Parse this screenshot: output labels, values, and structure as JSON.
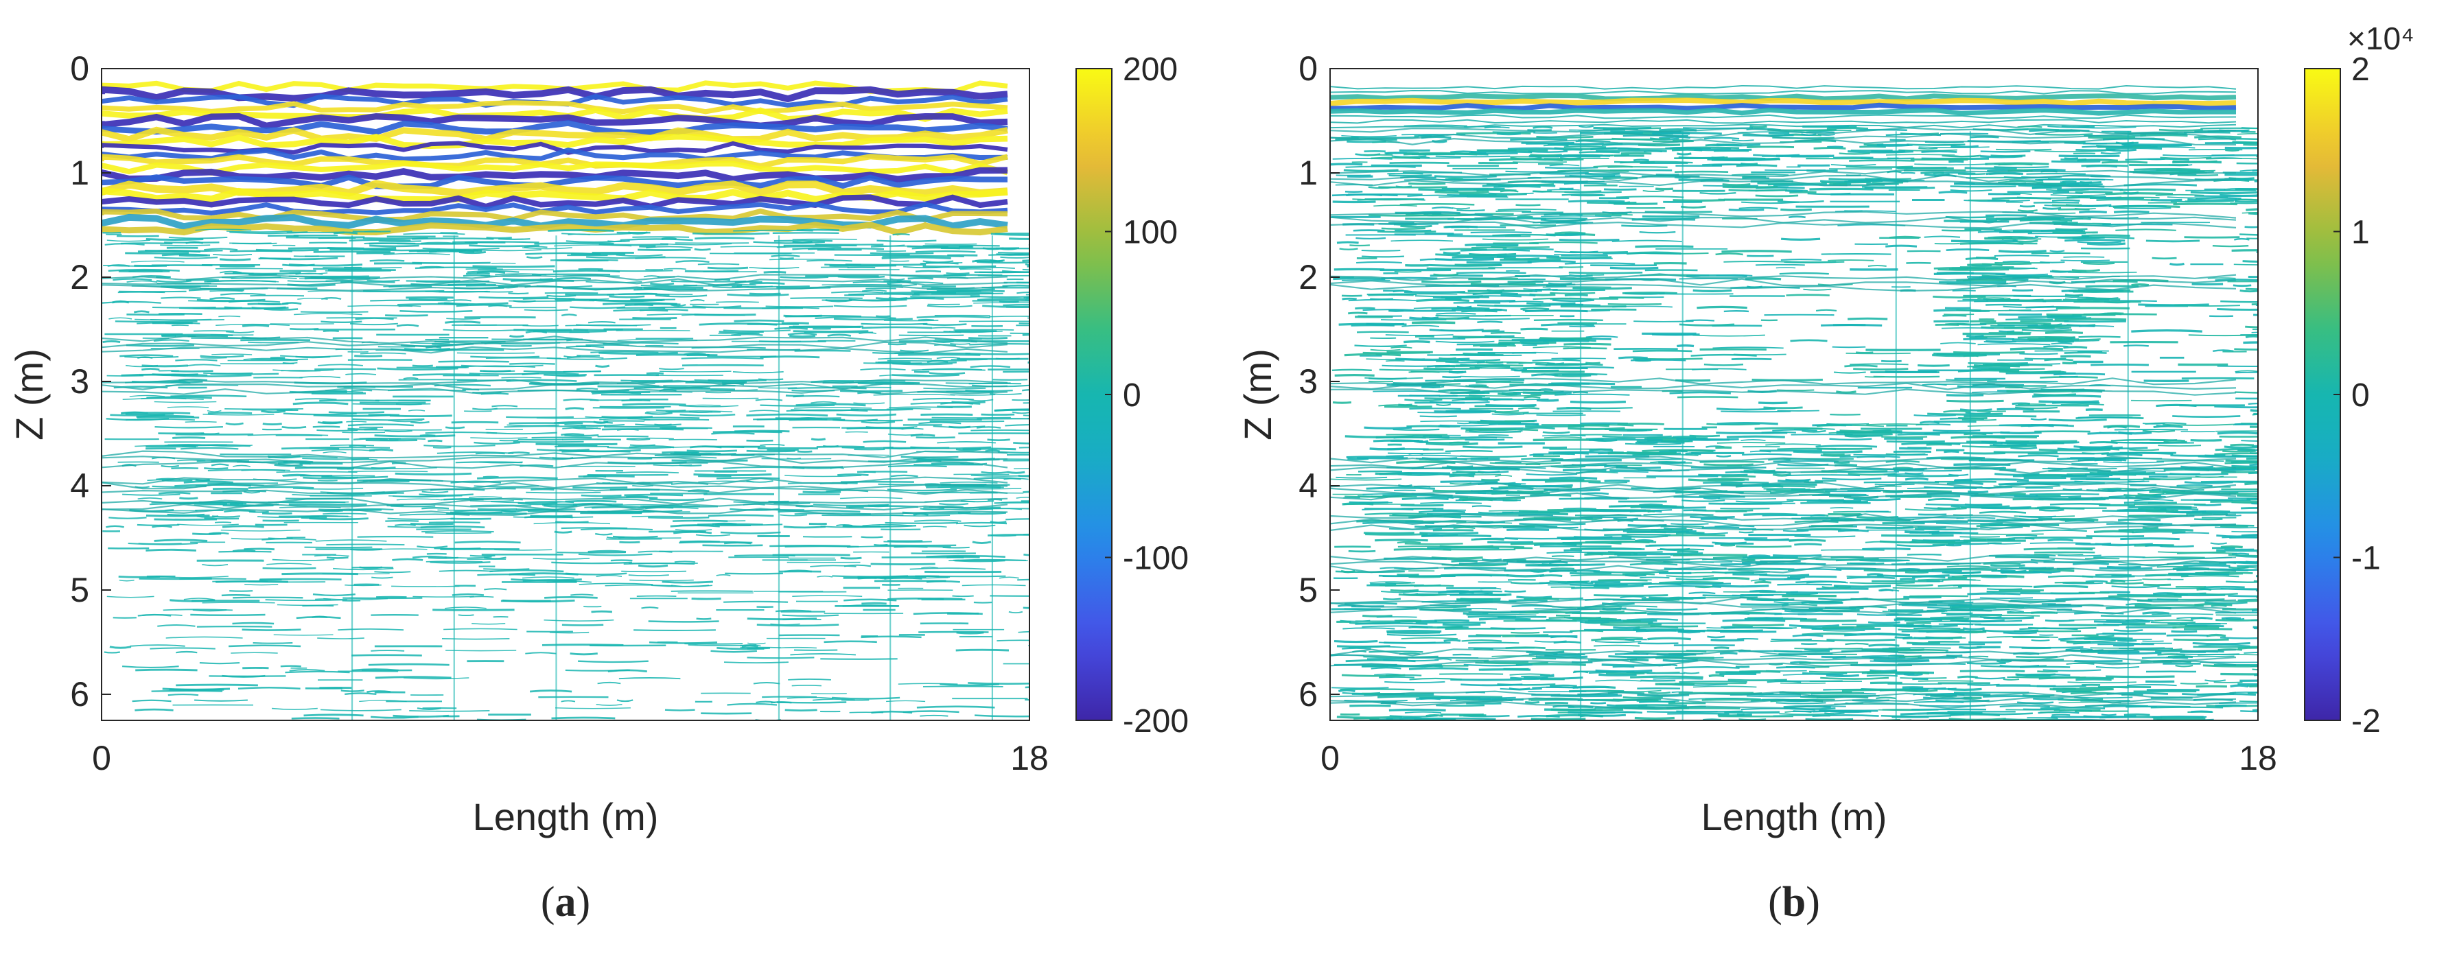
{
  "chart_data": [
    {
      "type": "heatmap",
      "subtype": "contour",
      "panel_label": "(a)",
      "xlabel": "Length (m)",
      "ylabel": "Z (m)",
      "xlim": [
        0,
        18
      ],
      "ylim": [
        6.25,
        0
      ],
      "y_reversed": true,
      "xticks": [
        0,
        18
      ],
      "yticks": [
        0,
        1,
        2,
        3,
        4,
        5,
        6
      ],
      "colormap": "parula",
      "colorbar": {
        "ticks": [
          200,
          100,
          0,
          -100,
          -200
        ],
        "lim": [
          -200,
          200
        ],
        "exponent_label": ""
      },
      "reflector_depths_m": [
        0.3,
        0.5,
        0.65,
        0.8,
        0.95,
        1.1,
        1.25,
        1.4,
        1.55,
        2.0,
        2.6,
        3.0,
        3.7,
        3.95,
        4.15
      ],
      "high_amplitude_until_depth_m": 1.6
    },
    {
      "type": "heatmap",
      "subtype": "contour",
      "panel_label": "(b)",
      "xlabel": "Length (m)",
      "ylabel": "Z (m)",
      "xlim": [
        0,
        18
      ],
      "ylim": [
        6.25,
        0
      ],
      "y_reversed": true,
      "xticks": [
        0,
        18
      ],
      "yticks": [
        0,
        1,
        2,
        3,
        4,
        5,
        6
      ],
      "colormap": "parula",
      "colorbar": {
        "ticks": [
          2,
          1,
          0,
          -1,
          -2
        ],
        "lim": [
          -2,
          2
        ],
        "exponent_label": "×10⁴"
      },
      "reflector_depths_m": [
        0.25,
        0.4,
        0.6,
        1.0,
        1.4,
        2.0,
        3.0,
        3.75,
        4.0,
        4.3,
        4.7,
        5.1,
        5.6,
        6.0
      ],
      "high_amplitude_until_depth_m": 0.6
    }
  ],
  "colors": {
    "axis": "#262626",
    "cyan": "#17b5b0",
    "yellow": "#f5f521",
    "indigo": "#3e2fb8"
  }
}
